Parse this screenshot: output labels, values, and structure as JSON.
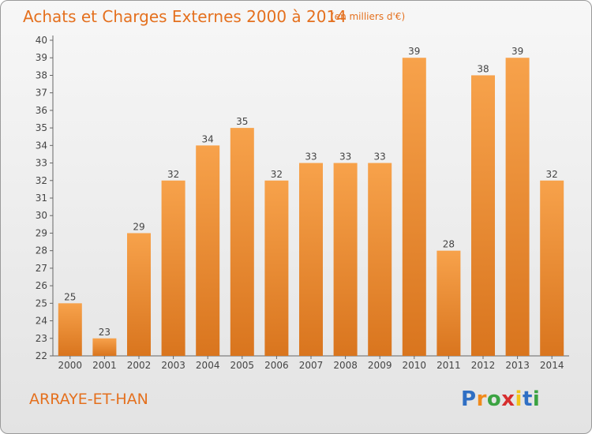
{
  "header": {
    "title": "Achats et Charges Externes 2000 à 2014",
    "unit": "(en milliers d'€)"
  },
  "footer": {
    "place": "ARRAYE-ET-HAN",
    "logo_letters": [
      "P",
      "r",
      "o",
      "x",
      "i",
      "t",
      "i"
    ]
  },
  "colors": {
    "bar_top": "#f7a24b",
    "bar_bottom": "#d9751e",
    "text": "#e4701e",
    "axis": "#666666"
  },
  "chart_data": {
    "type": "bar",
    "title": "Achats et Charges Externes 2000 à 2014",
    "subtitle": "(en milliers d'€)",
    "categories": [
      "2000",
      "2001",
      "2002",
      "2003",
      "2004",
      "2005",
      "2006",
      "2007",
      "2008",
      "2009",
      "2010",
      "2011",
      "2012",
      "2013",
      "2014"
    ],
    "values": [
      25,
      23,
      29,
      32,
      34,
      35,
      32,
      33,
      33,
      33,
      39,
      28,
      38,
      39,
      32
    ],
    "yticks": [
      22,
      23,
      24,
      25,
      26,
      27,
      28,
      29,
      30,
      31,
      32,
      33,
      34,
      35,
      36,
      37,
      38,
      39,
      40
    ],
    "ylim": [
      22,
      40
    ],
    "grid": false,
    "data_labels": true
  }
}
